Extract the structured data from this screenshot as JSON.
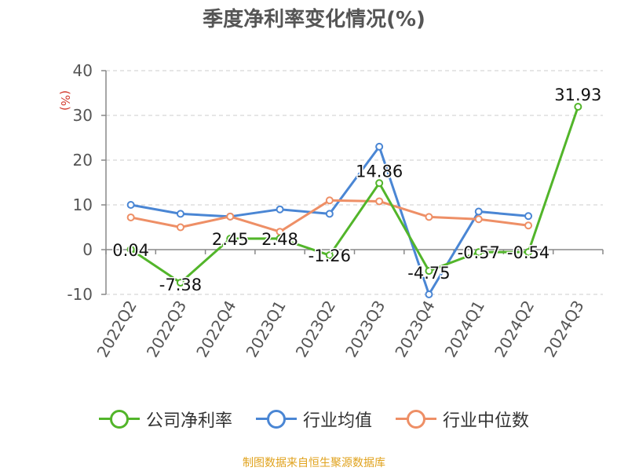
{
  "chart_data": {
    "type": "line",
    "title": "季度净利率变化情况(%)",
    "ylabel": "(%)",
    "ylim": [
      -10,
      40
    ],
    "yticks": [
      "40",
      "30",
      "20",
      "10",
      "0",
      "-10"
    ],
    "categories": [
      "2022Q2",
      "2022Q3",
      "2022Q4",
      "2023Q1",
      "2023Q2",
      "2023Q3",
      "2023Q4",
      "2024Q1",
      "2024Q2",
      "2024Q3"
    ],
    "grid": true,
    "legend_position": "bottom",
    "series": [
      {
        "name": "公司净利率",
        "color": "#52b52a",
        "values": [
          0.04,
          -7.38,
          2.45,
          2.48,
          -1.26,
          14.86,
          -4.75,
          -0.57,
          -0.54,
          31.93
        ],
        "labels": [
          "0.04",
          "-7.38",
          "2.45",
          "2.48",
          "-1.26",
          "14.86",
          "-4.75",
          "-0.57",
          "-0.54",
          "31.93"
        ]
      },
      {
        "name": "行业均值",
        "color": "#4a86d4",
        "values": [
          10,
          8,
          7.4,
          9,
          8,
          23,
          -10,
          8.5,
          7.5,
          null
        ]
      },
      {
        "name": "行业中位数",
        "color": "#ee8f66",
        "values": [
          7.2,
          5,
          7.4,
          4,
          11,
          10.8,
          7.3,
          6.8,
          5.4,
          null
        ]
      }
    ]
  },
  "source_note": "制图数据来自恒生聚源数据库"
}
